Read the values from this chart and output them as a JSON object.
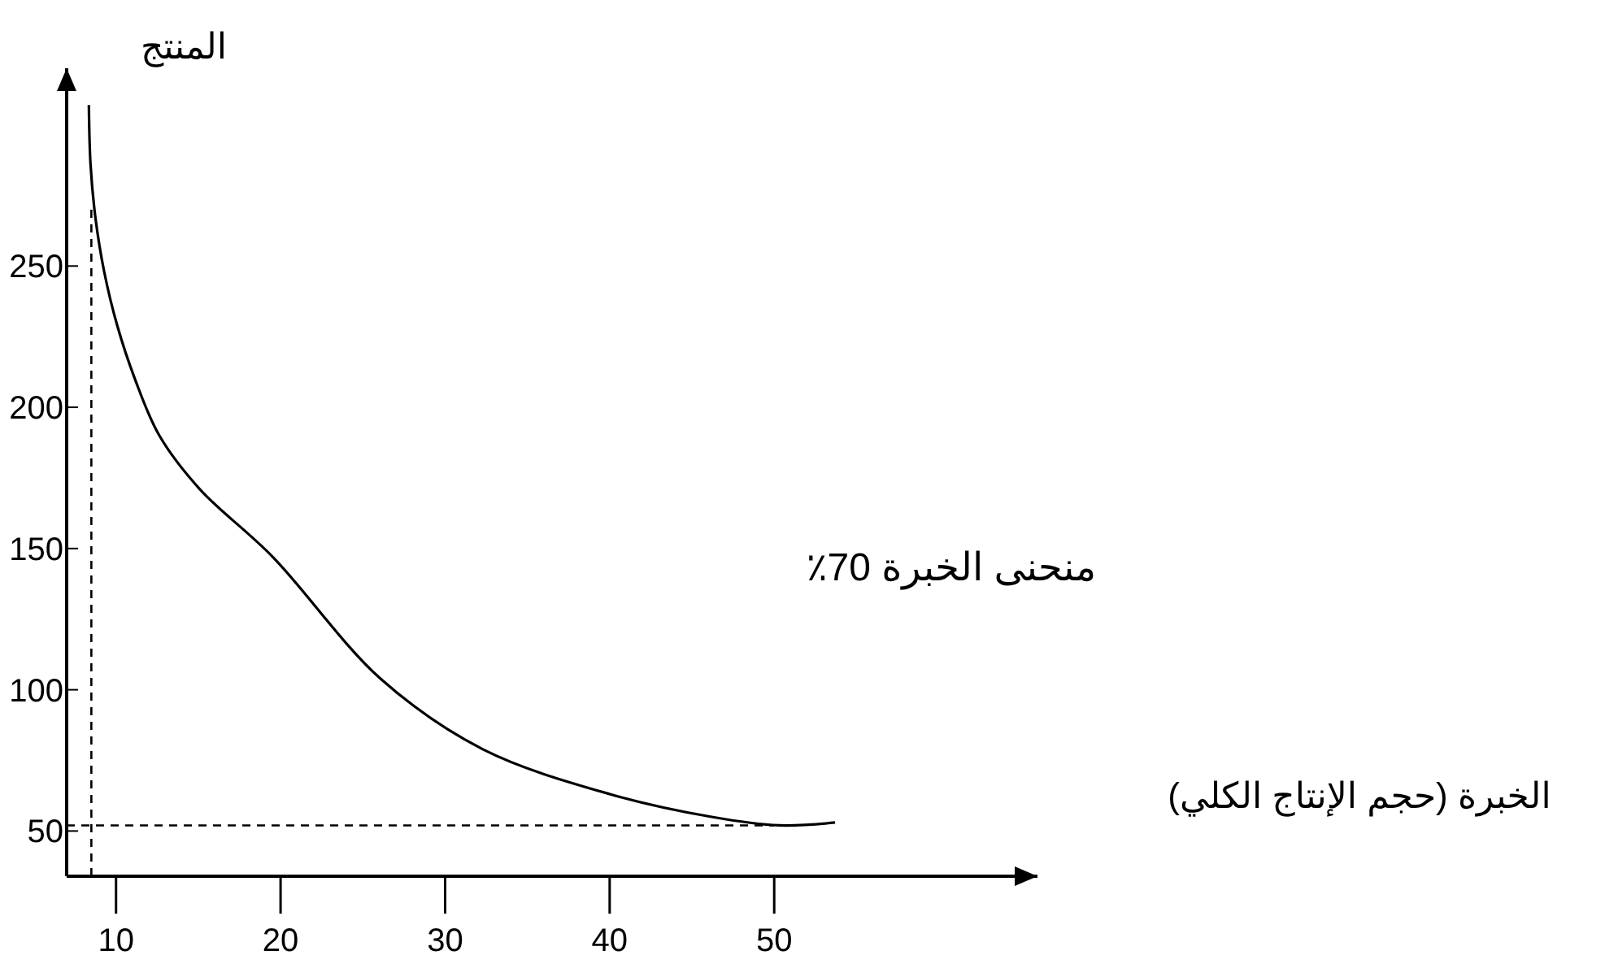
{
  "chart_data": {
    "type": "line",
    "xlabel": "الخبرة (حجم الإنتاج الكلي)",
    "ylabel": "المنتج",
    "annotations": [
      "منحنى الخبرة 70٪"
    ],
    "xlim": [
      7,
      66
    ],
    "ylim": [
      34,
      320
    ],
    "xticks": [
      10,
      20,
      30,
      40,
      50
    ],
    "yticks": [
      50,
      100,
      150,
      200,
      250
    ],
    "series": [
      {
        "color": "#000000",
        "x": [
          8.35,
          8.45,
          8.75,
          9.28,
          10.07,
          11.15,
          12.63,
          15.09,
          19.53,
          26.06,
          32.27,
          40.05,
          46.2,
          50.3,
          53.7
        ],
        "values": [
          307,
          286,
          267,
          248,
          229,
          210,
          190,
          171,
          147,
          104,
          79,
          63,
          55,
          52,
          53
        ]
      }
    ],
    "ref_lines": [
      {
        "axis": "x",
        "value": 8.5,
        "line_style": "dashed",
        "color": "#000000"
      },
      {
        "axis": "y",
        "value": 52,
        "line_style": "dashed",
        "color": "#000000"
      }
    ],
    "marker": "none",
    "line_style": "solid",
    "grid": false
  }
}
